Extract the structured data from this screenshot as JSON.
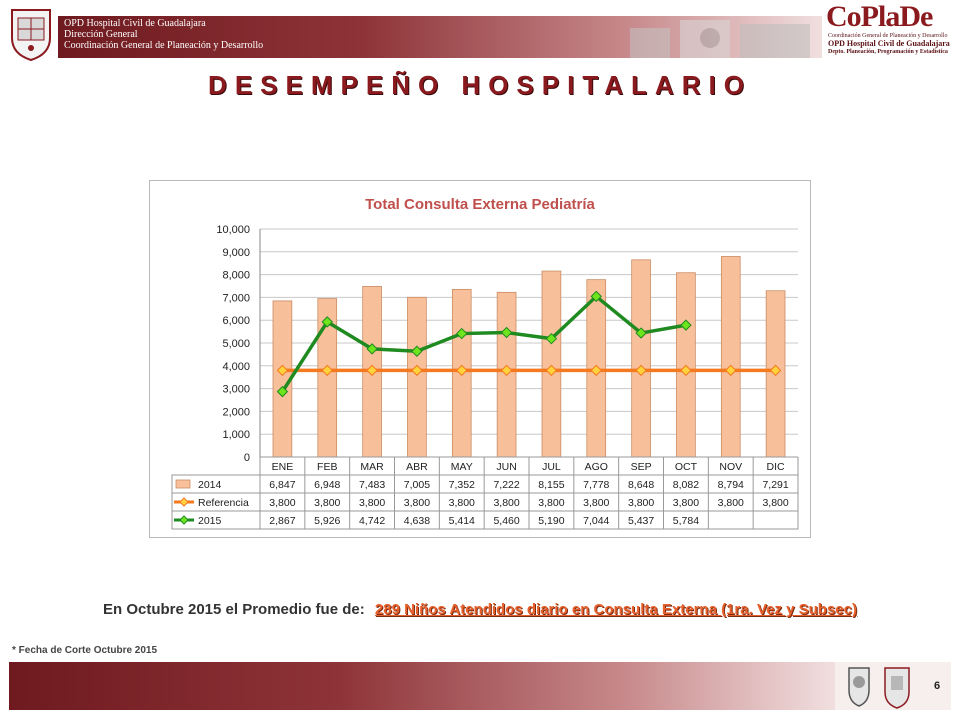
{
  "header": {
    "org_lines": [
      "OPD Hospital Civil de Guadalajara",
      "Dirección General",
      "Coordinación General de Planeación y Desarrollo"
    ],
    "logo_text": "CoPlaDe",
    "logo_sub": [
      "Coordinación General de Planeación y Desarrollo",
      "OPD Hospital Civil de Guadalajara",
      "Depto. Planeación, Programación y Estadística"
    ]
  },
  "page_title": "DESEMPEÑO HOSPITALARIO",
  "chart_data": {
    "type": "bar",
    "title": "Total Consulta Externa Pediatría",
    "categories": [
      "ENE",
      "FEB",
      "MAR",
      "ABR",
      "MAY",
      "JUN",
      "JUL",
      "AGO",
      "SEP",
      "OCT",
      "NOV",
      "DIC"
    ],
    "ylim": [
      0,
      10000
    ],
    "yticks": [
      "0",
      "1,000",
      "2,000",
      "3,000",
      "4,000",
      "5,000",
      "6,000",
      "7,000",
      "8,000",
      "9,000",
      "10,000"
    ],
    "grid": true,
    "series": [
      {
        "name": "2014",
        "kind": "bar",
        "color": "#f8c09a",
        "values": [
          6847,
          6948,
          7483,
          7005,
          7352,
          7222,
          8155,
          7778,
          8648,
          8082,
          8794,
          7291
        ],
        "labels": [
          "6,847",
          "6,948",
          "7,483",
          "7,005",
          "7,352",
          "7,222",
          "8,155",
          "7,778",
          "8,648",
          "8,082",
          "8,794",
          "7,291"
        ]
      },
      {
        "name": "Referencia",
        "kind": "line",
        "color": "#f4791f",
        "marker_color": "#ffd33d",
        "values": [
          3800,
          3800,
          3800,
          3800,
          3800,
          3800,
          3800,
          3800,
          3800,
          3800,
          3800,
          3800
        ],
        "labels": [
          "3,800",
          "3,800",
          "3,800",
          "3,800",
          "3,800",
          "3,800",
          "3,800",
          "3,800",
          "3,800",
          "3,800",
          "3,800",
          "3,800"
        ]
      },
      {
        "name": "2015",
        "kind": "line",
        "color": "#1f8a20",
        "marker_color": "#6ee51c",
        "values": [
          2867,
          5926,
          4742,
          4638,
          5414,
          5460,
          5190,
          7044,
          5437,
          5784,
          null,
          null
        ],
        "labels": [
          "2,867",
          "5,926",
          "4,742",
          "4,638",
          "5,414",
          "5,460",
          "5,190",
          "7,044",
          "5,437",
          "5,784",
          "",
          ""
        ]
      }
    ]
  },
  "summary": {
    "prefix": "En Octubre 2015 el Promedio fue de:",
    "highlight": "289  Niños Atendidos diario  en Consulta Externa  (1ra. Vez y Subsec)"
  },
  "footnote": "* Fecha de Corte Octubre 2015",
  "page_number": "6"
}
